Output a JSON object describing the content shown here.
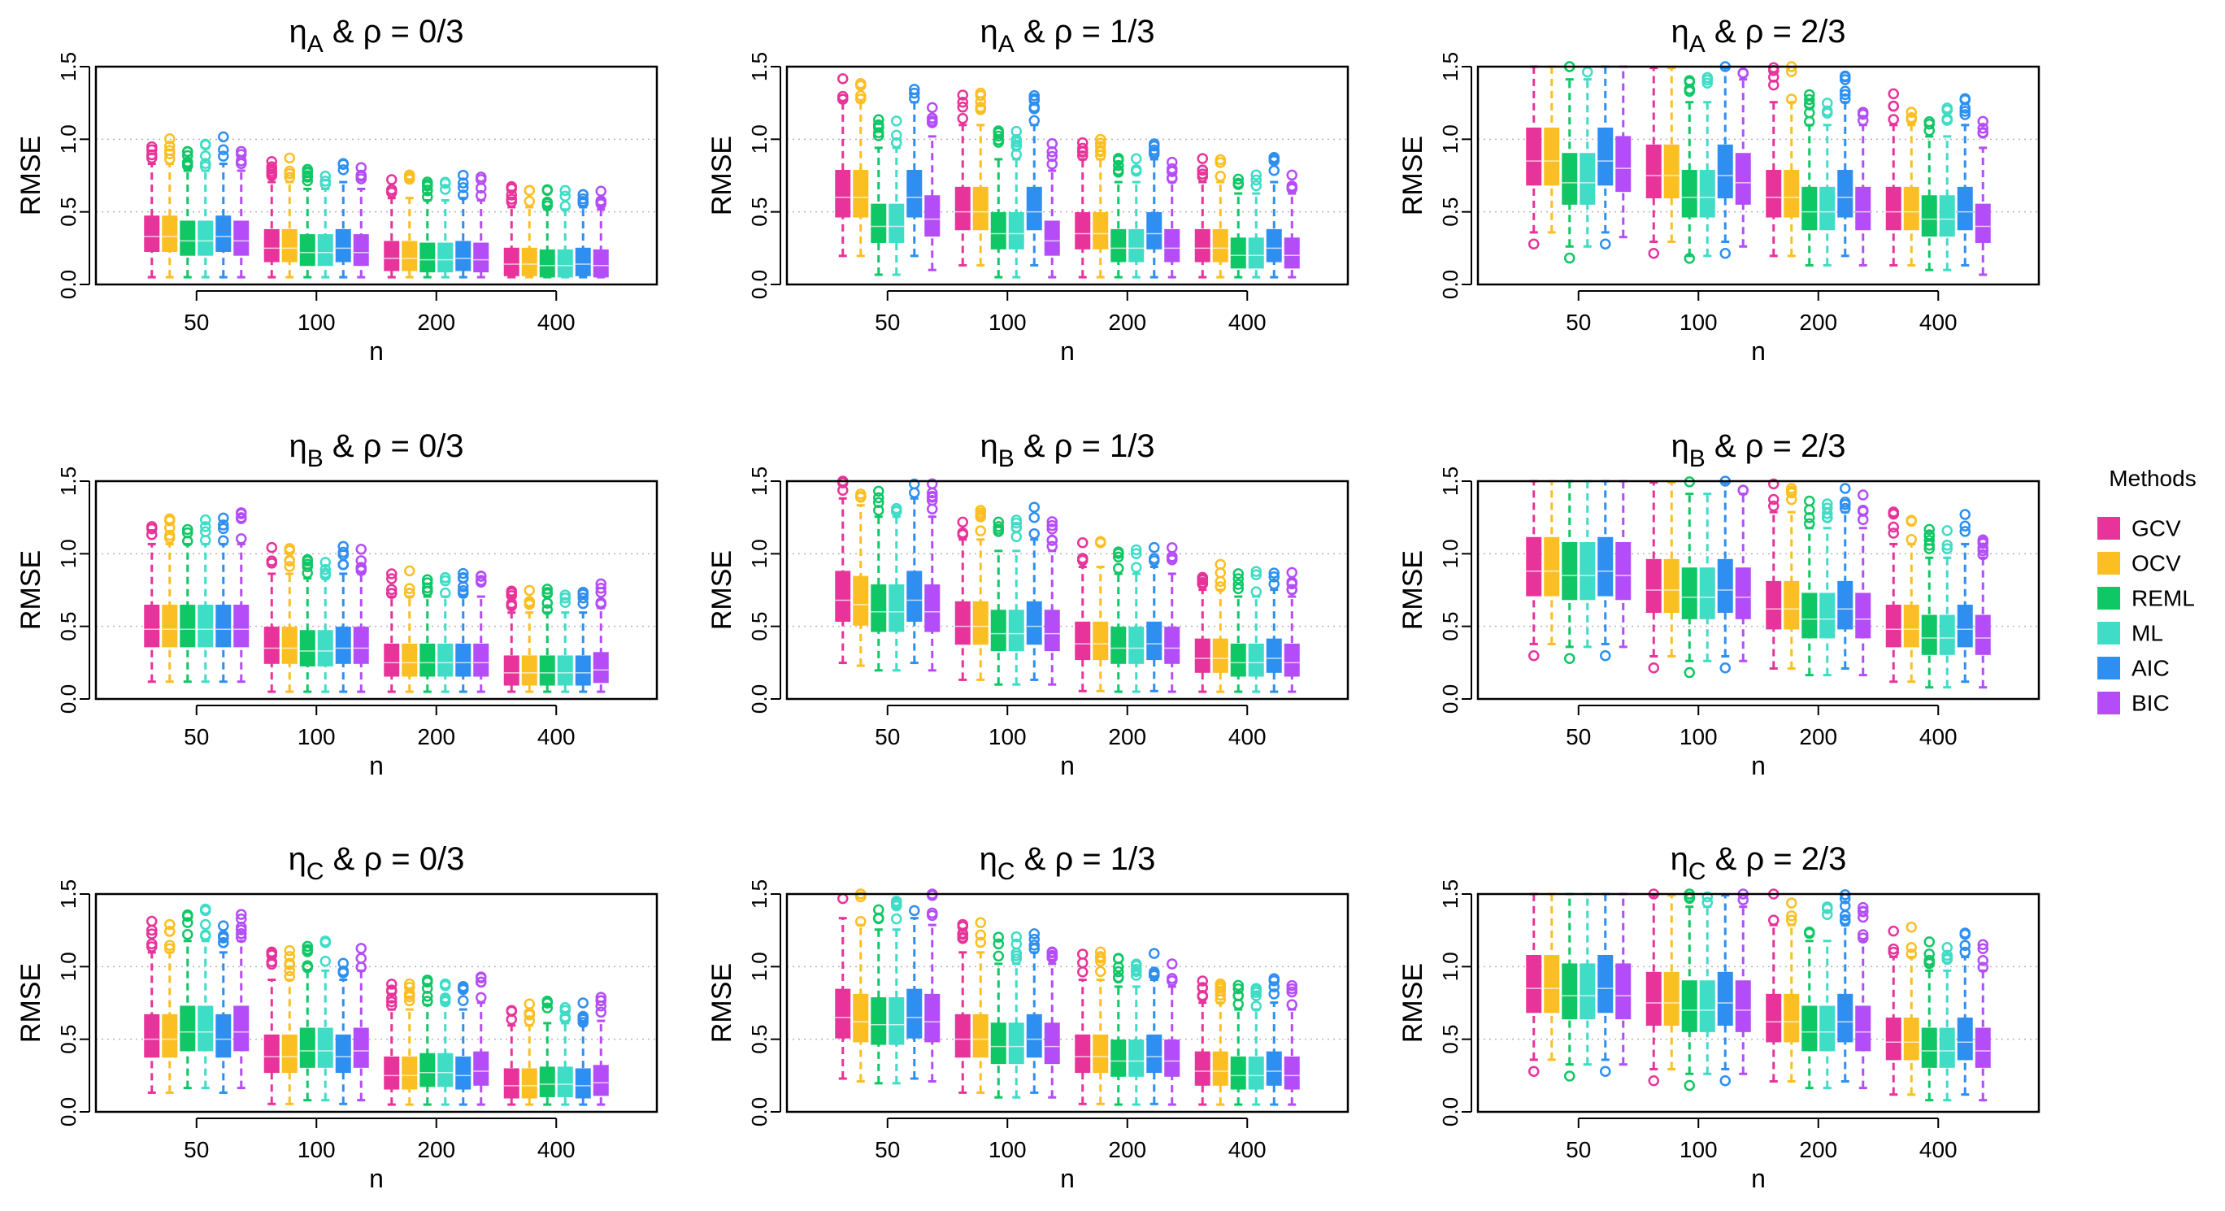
{
  "chart_data": {
    "type": "boxplot",
    "layout": "3x3 grid of panels",
    "xlabel": "n",
    "ylabel": "RMSE",
    "categories": [
      "50",
      "100",
      "200",
      "400"
    ],
    "ylim": [
      0,
      1.5
    ],
    "yticks": [
      "0.0",
      "0.5",
      "1.0",
      "1.5"
    ],
    "grid": "horizontal dotted",
    "methods": [
      "GCV",
      "OCV",
      "REML",
      "ML",
      "AIC",
      "BIC"
    ],
    "method_colors": [
      "#e8339a",
      "#fbbf24",
      "#10c765",
      "#3fdcc6",
      "#2e8ff0",
      "#b44df7"
    ],
    "legend": {
      "title": "Methods",
      "placement": "right"
    },
    "panels": [
      {
        "eta": "A",
        "rho": "0/3",
        "medians": [
          [
            0.33,
            0.33,
            0.3,
            0.3,
            0.33,
            0.3
          ],
          [
            0.25,
            0.25,
            0.22,
            0.22,
            0.25,
            0.22
          ],
          [
            0.18,
            0.18,
            0.17,
            0.17,
            0.18,
            0.17
          ],
          [
            0.14,
            0.14,
            0.13,
            0.13,
            0.14,
            0.13
          ]
        ]
      },
      {
        "eta": "A",
        "rho": "1/3",
        "medians": [
          [
            0.6,
            0.6,
            0.4,
            0.4,
            0.6,
            0.45
          ],
          [
            0.5,
            0.5,
            0.35,
            0.35,
            0.5,
            0.3
          ],
          [
            0.35,
            0.35,
            0.25,
            0.25,
            0.35,
            0.25
          ],
          [
            0.25,
            0.25,
            0.2,
            0.2,
            0.25,
            0.2
          ]
        ]
      },
      {
        "eta": "A",
        "rho": "2/3",
        "medians": [
          [
            0.85,
            0.85,
            0.7,
            0.7,
            0.85,
            0.8
          ],
          [
            0.75,
            0.75,
            0.6,
            0.6,
            0.75,
            0.7
          ],
          [
            0.6,
            0.6,
            0.5,
            0.5,
            0.6,
            0.5
          ],
          [
            0.5,
            0.5,
            0.45,
            0.45,
            0.5,
            0.4
          ]
        ]
      },
      {
        "eta": "B",
        "rho": "0/3",
        "medians": [
          [
            0.48,
            0.48,
            0.48,
            0.48,
            0.48,
            0.48
          ],
          [
            0.35,
            0.35,
            0.33,
            0.33,
            0.35,
            0.35
          ],
          [
            0.25,
            0.25,
            0.25,
            0.25,
            0.25,
            0.25
          ],
          [
            0.18,
            0.18,
            0.18,
            0.18,
            0.18,
            0.2
          ]
        ]
      },
      {
        "eta": "B",
        "rho": "1/3",
        "medians": [
          [
            0.68,
            0.65,
            0.6,
            0.6,
            0.68,
            0.6
          ],
          [
            0.5,
            0.5,
            0.45,
            0.45,
            0.5,
            0.45
          ],
          [
            0.38,
            0.38,
            0.35,
            0.35,
            0.38,
            0.35
          ],
          [
            0.28,
            0.28,
            0.25,
            0.25,
            0.28,
            0.25
          ]
        ]
      },
      {
        "eta": "B",
        "rho": "2/3",
        "medians": [
          [
            0.88,
            0.88,
            0.85,
            0.85,
            0.88,
            0.85
          ],
          [
            0.75,
            0.75,
            0.7,
            0.7,
            0.75,
            0.7
          ],
          [
            0.62,
            0.62,
            0.55,
            0.55,
            0.62,
            0.55
          ],
          [
            0.48,
            0.48,
            0.42,
            0.42,
            0.48,
            0.42
          ]
        ]
      },
      {
        "eta": "C",
        "rho": "0/3",
        "medians": [
          [
            0.5,
            0.5,
            0.55,
            0.55,
            0.5,
            0.55
          ],
          [
            0.38,
            0.38,
            0.42,
            0.42,
            0.38,
            0.42
          ],
          [
            0.25,
            0.25,
            0.27,
            0.27,
            0.25,
            0.28
          ],
          [
            0.18,
            0.18,
            0.19,
            0.19,
            0.18,
            0.2
          ]
        ]
      },
      {
        "eta": "C",
        "rho": "1/3",
        "medians": [
          [
            0.65,
            0.62,
            0.6,
            0.6,
            0.65,
            0.62
          ],
          [
            0.5,
            0.5,
            0.45,
            0.45,
            0.5,
            0.45
          ],
          [
            0.38,
            0.38,
            0.35,
            0.35,
            0.38,
            0.35
          ],
          [
            0.28,
            0.28,
            0.25,
            0.25,
            0.28,
            0.25
          ]
        ]
      },
      {
        "eta": "C",
        "rho": "2/3",
        "medians": [
          [
            0.85,
            0.85,
            0.8,
            0.8,
            0.85,
            0.8
          ],
          [
            0.75,
            0.75,
            0.7,
            0.7,
            0.75,
            0.7
          ],
          [
            0.62,
            0.62,
            0.55,
            0.55,
            0.62,
            0.55
          ],
          [
            0.48,
            0.48,
            0.42,
            0.42,
            0.48,
            0.42
          ]
        ]
      }
    ]
  }
}
